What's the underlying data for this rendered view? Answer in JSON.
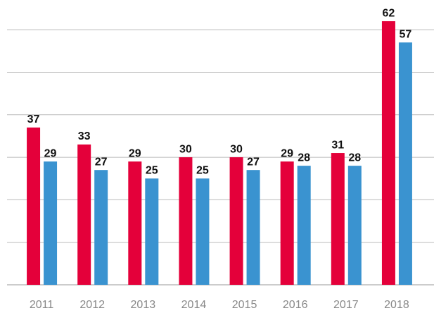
{
  "chart_data": {
    "type": "bar",
    "categories": [
      "2011",
      "2012",
      "2013",
      "2014",
      "2015",
      "2016",
      "2017",
      "2018"
    ],
    "series": [
      {
        "color": "#e4003a",
        "values": [
          37,
          33,
          29,
          30,
          30,
          29,
          31,
          62
        ]
      },
      {
        "color": "#3a93d0",
        "values": [
          29,
          27,
          25,
          25,
          27,
          28,
          28,
          57
        ]
      }
    ],
    "ylim": [
      0,
      65
    ],
    "yticks": [
      0,
      10,
      20,
      30,
      40,
      50,
      60
    ],
    "grid": true
  }
}
